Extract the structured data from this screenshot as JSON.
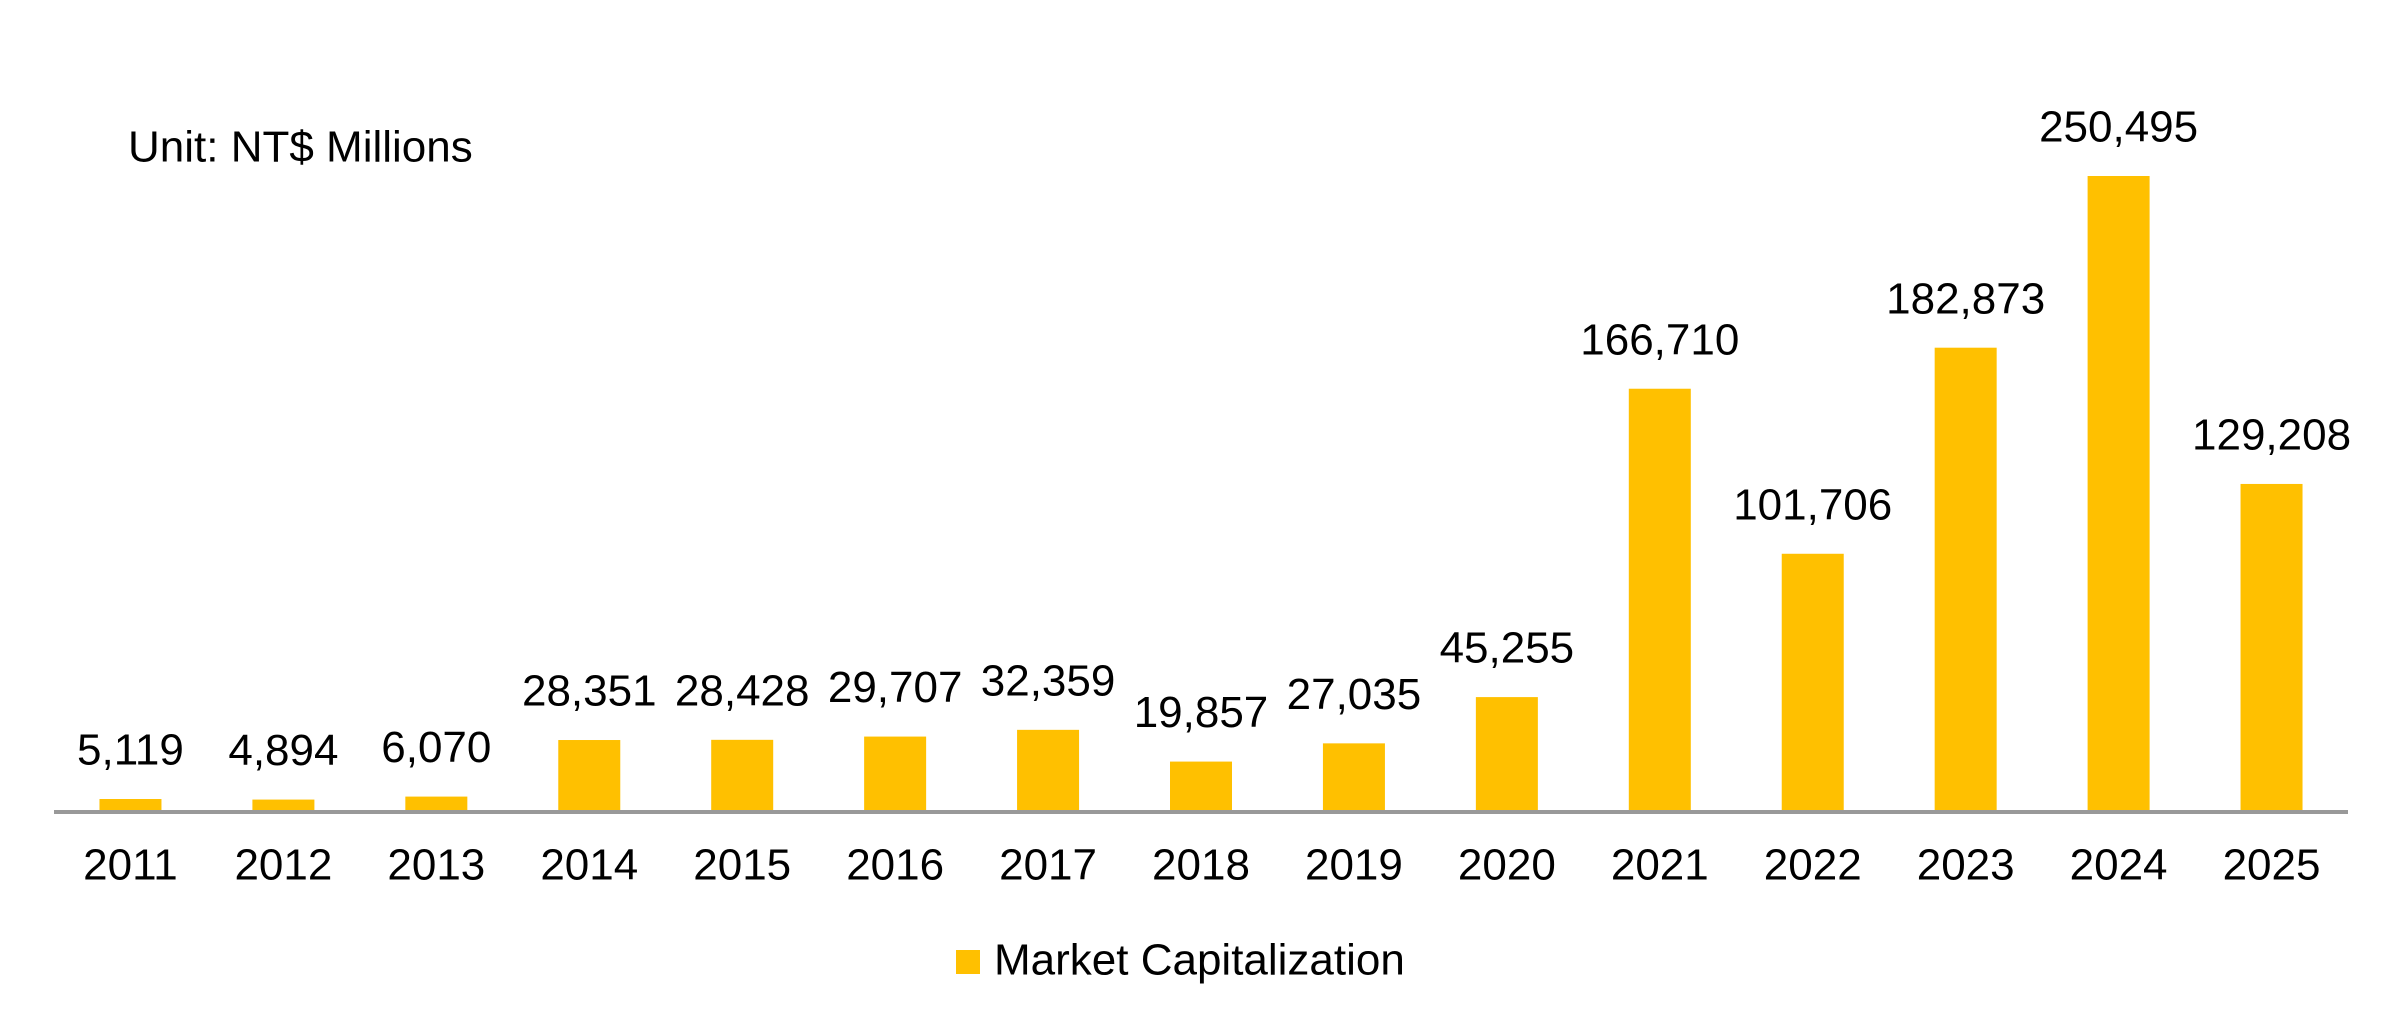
{
  "chart_data": {
    "type": "bar",
    "annotation": "Unit: NT$ Millions",
    "categories": [
      "2011",
      "2012",
      "2013",
      "2014",
      "2015",
      "2016",
      "2017",
      "2018",
      "2019",
      "2020",
      "2021",
      "2022",
      "2023",
      "2024",
      "2025"
    ],
    "series": [
      {
        "name": "Market Capitalization",
        "color": "#FFC000",
        "values": [
          5119,
          4894,
          6070,
          28351,
          28428,
          29707,
          32359,
          19857,
          27035,
          45255,
          166710,
          101706,
          182873,
          250495,
          129208
        ],
        "value_labels": [
          "5,119",
          "4,894",
          "6,070",
          "28,351",
          "28,428",
          "29,707",
          "32,359",
          "19,857",
          "27,035",
          "45,255",
          "166,710",
          "101,706",
          "182,873",
          "250,495",
          "129,208"
        ]
      }
    ],
    "legend": "bottom"
  }
}
